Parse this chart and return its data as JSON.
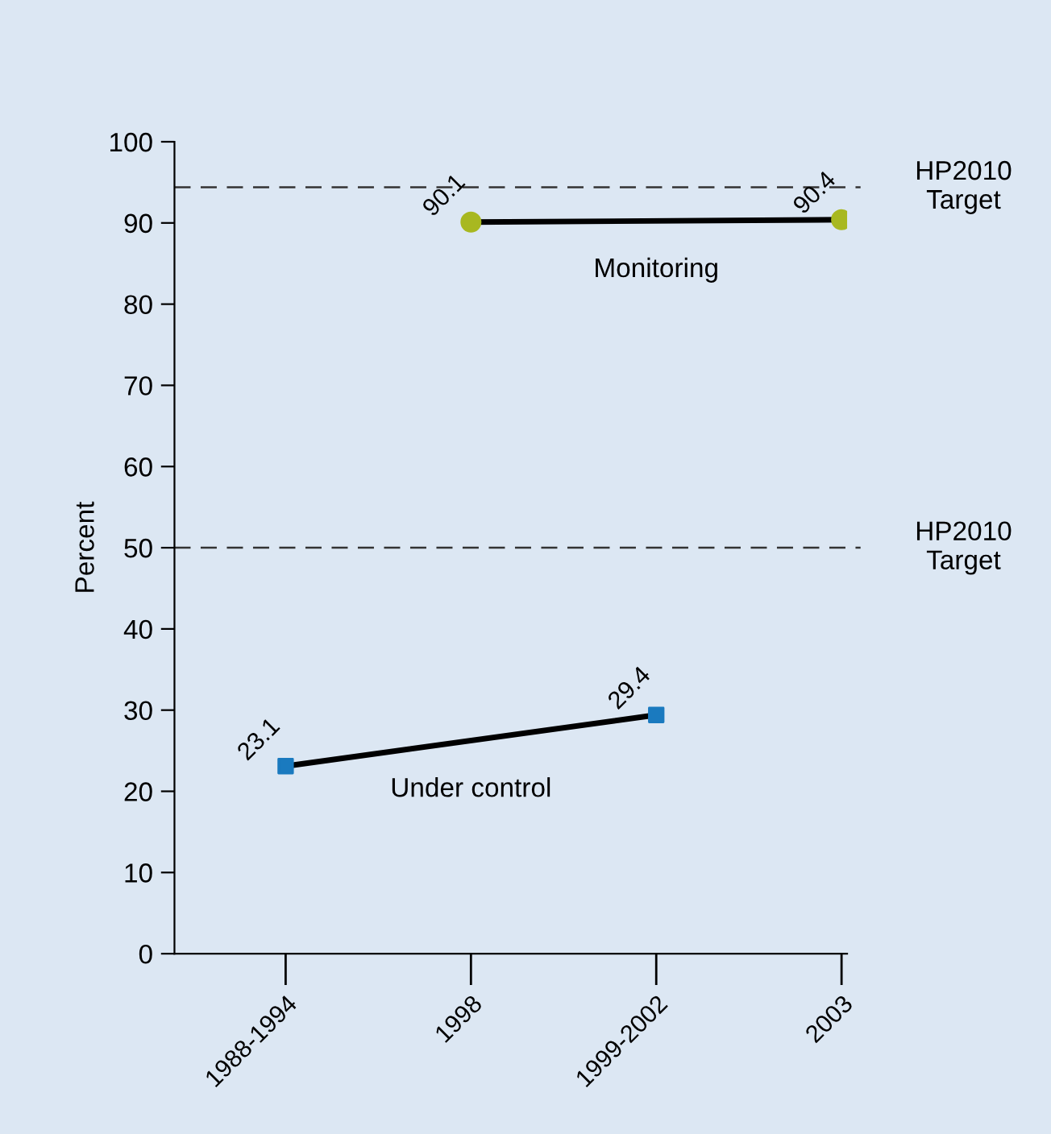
{
  "chart_data": {
    "type": "line",
    "ylabel": "Percent",
    "categories": [
      "1988-1994",
      "1998",
      "1999-2002",
      "2003"
    ],
    "series": [
      {
        "name": "Monitoring",
        "color": "#a8b820",
        "marker": "circle",
        "values": [
          null,
          90.1,
          null,
          90.4
        ]
      },
      {
        "name": "Under control",
        "color": "#1a7abf",
        "marker": "square",
        "values": [
          23.1,
          null,
          29.4,
          null
        ]
      }
    ],
    "ylim": [
      0,
      100
    ],
    "yticks": [
      0,
      10,
      20,
      30,
      40,
      50,
      60,
      70,
      80,
      90,
      100
    ],
    "grid": false,
    "legend": false,
    "data_labels": true,
    "ref_lines": [
      {
        "axis": "y",
        "value": 94.4,
        "label": "HP2010\nTarget",
        "line_style": "dashed"
      },
      {
        "axis": "y",
        "value": 50,
        "label": "HP2010\nTarget",
        "line_style": "dashed"
      }
    ]
  }
}
